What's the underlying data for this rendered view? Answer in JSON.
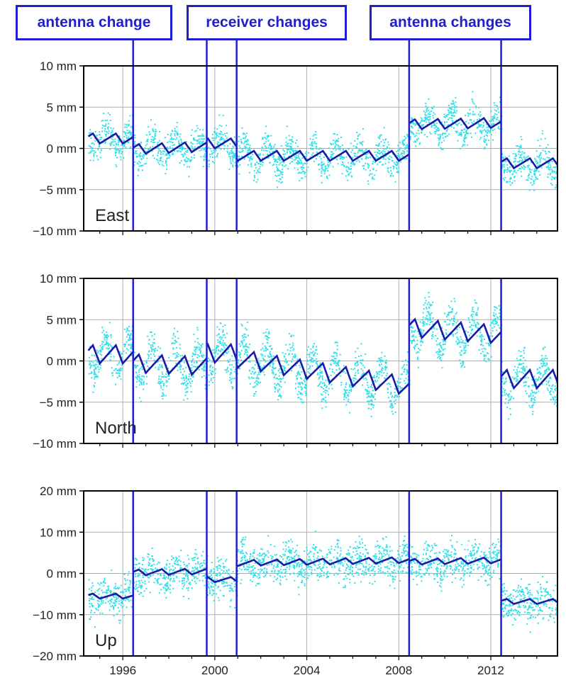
{
  "callouts": [
    {
      "label": "antenna change"
    },
    {
      "label": "receiver changes"
    },
    {
      "label": "antenna changes"
    }
  ],
  "colors": {
    "scatter": "#33e0e8",
    "model": "#1a1aa8",
    "events": "#1f1fd0",
    "grid": "#b0b0b0",
    "frame": "#000000"
  },
  "chart_data": [
    {
      "type": "scatter",
      "panel_label": "East",
      "xlim": [
        1994.3,
        2014.9
      ],
      "ylim": [
        -10,
        10
      ],
      "yticks": [
        {
          "value": 10,
          "label": "10 mm"
        },
        {
          "value": 5,
          "label": "5 mm"
        },
        {
          "value": 0,
          "label": "0 mm"
        },
        {
          "value": -5,
          "label": "−5 mm"
        },
        {
          "value": -10,
          "label": "−10 mm"
        }
      ],
      "grid_x": [
        1996,
        2000,
        2004,
        2008,
        2012
      ],
      "event_lines": [
        1996.45,
        1999.65,
        2000.95,
        2008.45,
        2012.45
      ],
      "segments": [
        {
          "x_start": 1994.5,
          "x_end": 1996.45,
          "offset": 1.2,
          "trend_per_year": 0.0,
          "amplitude": 0.6
        },
        {
          "x_start": 1996.45,
          "x_end": 1999.65,
          "offset": -0.1,
          "trend_per_year": 0.1,
          "amplitude": 0.6
        },
        {
          "x_start": 1999.65,
          "x_end": 2000.95,
          "offset": 0.6,
          "trend_per_year": 0.0,
          "amplitude": 0.6
        },
        {
          "x_start": 2000.95,
          "x_end": 2008.45,
          "offset": -0.9,
          "trend_per_year": 0.0,
          "amplitude": 0.6
        },
        {
          "x_start": 2008.45,
          "x_end": 2012.45,
          "offset": 2.9,
          "trend_per_year": 0.05,
          "amplitude": 0.6
        },
        {
          "x_start": 2012.45,
          "x_end": 2014.9,
          "offset": -1.8,
          "trend_per_year": 0.0,
          "amplitude": 0.6
        }
      ],
      "scatter_spread": 1.9
    },
    {
      "type": "scatter",
      "panel_label": "North",
      "xlim": [
        1994.3,
        2014.9
      ],
      "ylim": [
        -10,
        10
      ],
      "yticks": [
        {
          "value": 10,
          "label": "10 mm"
        },
        {
          "value": 5,
          "label": "5 mm"
        },
        {
          "value": 0,
          "label": "0 mm"
        },
        {
          "value": -5,
          "label": "−5 mm"
        },
        {
          "value": -10,
          "label": "−10 mm"
        }
      ],
      "grid_x": [
        1996,
        2000,
        2004,
        2008,
        2012
      ],
      "event_lines": [
        1996.45,
        1999.65,
        2000.95,
        2008.45,
        2012.45
      ],
      "segments": [
        {
          "x_start": 1994.5,
          "x_end": 1996.45,
          "offset": 0.8,
          "trend_per_year": 0.0,
          "amplitude": 1.1
        },
        {
          "x_start": 1996.45,
          "x_end": 1999.65,
          "offset": -0.3,
          "trend_per_year": -0.1,
          "amplitude": 1.1
        },
        {
          "x_start": 1999.65,
          "x_end": 2000.95,
          "offset": 0.9,
          "trend_per_year": 0.0,
          "amplitude": 1.1
        },
        {
          "x_start": 2000.95,
          "x_end": 2008.45,
          "offset": 0.3,
          "trend_per_year": -0.45,
          "amplitude": 1.1
        },
        {
          "x_start": 2008.45,
          "x_end": 2012.45,
          "offset": 4.0,
          "trend_per_year": -0.2,
          "amplitude": 1.1
        },
        {
          "x_start": 2012.45,
          "x_end": 2014.9,
          "offset": -2.2,
          "trend_per_year": 0.0,
          "amplitude": 1.1
        }
      ],
      "scatter_spread": 2.1
    },
    {
      "type": "scatter",
      "panel_label": "Up",
      "xlim": [
        1994.3,
        2014.9
      ],
      "ylim": [
        -20,
        20
      ],
      "xticks": [
        {
          "value": 1996,
          "label": "1996"
        },
        {
          "value": 2000,
          "label": "2000"
        },
        {
          "value": 2004,
          "label": "2004"
        },
        {
          "value": 2008,
          "label": "2008"
        },
        {
          "value": 2012,
          "label": "2012"
        }
      ],
      "yticks": [
        {
          "value": 20,
          "label": "20 mm"
        },
        {
          "value": 10,
          "label": "10 mm"
        },
        {
          "value": 0,
          "label": "0 mm"
        },
        {
          "value": -10,
          "label": "−10 mm"
        },
        {
          "value": -20,
          "label": "−20 mm"
        }
      ],
      "grid_x": [
        1996,
        2000,
        2004,
        2008,
        2012
      ],
      "event_lines": [
        1996.45,
        1999.65,
        2000.95,
        2008.45,
        2012.45
      ],
      "segments": [
        {
          "x_start": 1994.5,
          "x_end": 1996.45,
          "offset": -5.5,
          "trend_per_year": 0.0,
          "amplitude": 0.6
        },
        {
          "x_start": 1996.45,
          "x_end": 1999.65,
          "offset": 0.2,
          "trend_per_year": 0.1,
          "amplitude": 0.7
        },
        {
          "x_start": 1999.65,
          "x_end": 2000.95,
          "offset": -1.5,
          "trend_per_year": 0.0,
          "amplitude": 0.6
        },
        {
          "x_start": 2000.95,
          "x_end": 2008.45,
          "offset": 2.5,
          "trend_per_year": 0.1,
          "amplitude": 0.7
        },
        {
          "x_start": 2008.45,
          "x_end": 2012.45,
          "offset": 2.8,
          "trend_per_year": 0.1,
          "amplitude": 0.7
        },
        {
          "x_start": 2012.45,
          "x_end": 2014.9,
          "offset": -6.8,
          "trend_per_year": 0.0,
          "amplitude": 0.6
        }
      ],
      "scatter_spread": 4.5
    }
  ]
}
